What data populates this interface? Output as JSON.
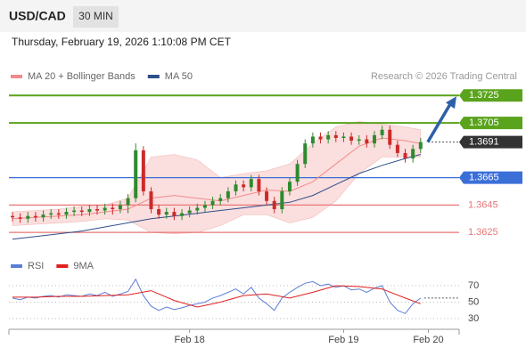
{
  "header": {
    "symbol": "USD/CAD",
    "timeframe": "30 MIN",
    "datetime": "Thursday, February 19, 2026 1:10:08 PM CET"
  },
  "chart_data": [
    {
      "type": "candlestick",
      "legend": [
        {
          "name": "MA 20 + Bollinger Bands",
          "color": "#f28b8b"
        },
        {
          "name": "MA 50",
          "color": "#2d4f8a"
        }
      ],
      "credit": "Research © 2026 Trading Central",
      "xlim": [
        0,
        58
      ],
      "xticks": [
        {
          "value": 23,
          "label": "Feb 18"
        },
        {
          "value": 43,
          "label": "Feb 19"
        },
        {
          "value": 54,
          "label": "Feb 20"
        }
      ],
      "ylim": [
        1.3616,
        1.3733
      ],
      "up_color": "#2e8b2e",
      "down_color": "#cc2a2a",
      "open": [
        1.3637,
        1.3636,
        1.3635,
        1.3637,
        1.3636,
        1.3638,
        1.3639,
        1.3638,
        1.364,
        1.3641,
        1.364,
        1.3642,
        1.3641,
        1.3643,
        1.3642,
        1.3645,
        1.365,
        1.3685,
        1.3655,
        1.3642,
        1.3638,
        1.364,
        1.3637,
        1.3639,
        1.3641,
        1.3643,
        1.3645,
        1.3648,
        1.365,
        1.3655,
        1.366,
        1.3658,
        1.3664,
        1.3655,
        1.3648,
        1.3642,
        1.3655,
        1.3662,
        1.3675,
        1.369,
        1.3695,
        1.3693,
        1.3696,
        1.3694,
        1.3695,
        1.3692,
        1.3693,
        1.369,
        1.3696,
        1.37,
        1.3689,
        1.3683,
        1.3679,
        1.3686
      ],
      "high": [
        1.364,
        1.3639,
        1.364,
        1.364,
        1.3641,
        1.3642,
        1.3642,
        1.3643,
        1.3644,
        1.3644,
        1.3645,
        1.3645,
        1.3646,
        1.3646,
        1.3648,
        1.3653,
        1.369,
        1.3688,
        1.3658,
        1.3645,
        1.3643,
        1.3643,
        1.3642,
        1.3644,
        1.3646,
        1.3648,
        1.3651,
        1.3653,
        1.3658,
        1.3663,
        1.3663,
        1.3667,
        1.3667,
        1.3658,
        1.3651,
        1.3658,
        1.3665,
        1.3678,
        1.3693,
        1.3698,
        1.3698,
        1.3699,
        1.3699,
        1.3698,
        1.3698,
        1.3696,
        1.3696,
        1.3699,
        1.3703,
        1.3703,
        1.3692,
        1.3686,
        1.3689,
        1.3694
      ],
      "low": [
        1.3633,
        1.3632,
        1.3632,
        1.3633,
        1.3633,
        1.3635,
        1.3635,
        1.3635,
        1.3637,
        1.3637,
        1.3637,
        1.3638,
        1.3638,
        1.3638,
        1.3639,
        1.3639,
        1.3647,
        1.3652,
        1.3639,
        1.3635,
        1.3635,
        1.3634,
        1.3634,
        1.3636,
        1.3638,
        1.364,
        1.3642,
        1.3645,
        1.3647,
        1.3652,
        1.3655,
        1.3655,
        1.3652,
        1.3645,
        1.3639,
        1.3639,
        1.3652,
        1.3659,
        1.3672,
        1.3687,
        1.369,
        1.369,
        1.3691,
        1.3691,
        1.3689,
        1.3689,
        1.3687,
        1.3687,
        1.3693,
        1.3686,
        1.368,
        1.3676,
        1.3676,
        1.3683
      ],
      "close": [
        1.3636,
        1.3635,
        1.3637,
        1.3636,
        1.3638,
        1.3639,
        1.3638,
        1.364,
        1.3641,
        1.364,
        1.3642,
        1.3641,
        1.3643,
        1.3642,
        1.3645,
        1.365,
        1.3685,
        1.3655,
        1.3642,
        1.3638,
        1.364,
        1.3637,
        1.3639,
        1.3641,
        1.3643,
        1.3645,
        1.3648,
        1.365,
        1.3655,
        1.366,
        1.3658,
        1.3664,
        1.3655,
        1.3648,
        1.3642,
        1.3655,
        1.3662,
        1.3675,
        1.369,
        1.3695,
        1.3693,
        1.3696,
        1.3694,
        1.3695,
        1.3692,
        1.3693,
        1.369,
        1.3696,
        1.37,
        1.3689,
        1.3683,
        1.3679,
        1.3686,
        1.3691
      ],
      "overlay_x": [
        0,
        3,
        6,
        9,
        12,
        15,
        18,
        21,
        24,
        27,
        30,
        33,
        36,
        39,
        42,
        45,
        48,
        51,
        53
      ],
      "bollinger": {
        "color": "#f9d3d3",
        "upper": [
          1.364,
          1.3641,
          1.3642,
          1.3644,
          1.3645,
          1.365,
          1.368,
          1.3682,
          1.3678,
          1.3665,
          1.3668,
          1.367,
          1.3675,
          1.369,
          1.3702,
          1.3706,
          1.3704,
          1.3702,
          1.37
        ],
        "lower": [
          1.363,
          1.3631,
          1.3632,
          1.3633,
          1.3635,
          1.3634,
          1.3625,
          1.3624,
          1.3625,
          1.363,
          1.3638,
          1.3638,
          1.3632,
          1.3636,
          1.3648,
          1.3668,
          1.368,
          1.368,
          1.368
        ]
      },
      "series": [
        {
          "name": "MA 20",
          "color": "#f28b8b",
          "values": [
            1.3635,
            1.3636,
            1.3637,
            1.3638,
            1.364,
            1.3642,
            1.365,
            1.3652,
            1.365,
            1.3648,
            1.3652,
            1.3656,
            1.3655,
            1.3662,
            1.3675,
            1.3688,
            1.3694,
            1.3692,
            1.369
          ]
        },
        {
          "name": "MA 50",
          "color": "#2d4f8a",
          "values": [
            1.362,
            1.3622,
            1.3624,
            1.3626,
            1.3629,
            1.3632,
            1.3635,
            1.3637,
            1.3639,
            1.3641,
            1.3643,
            1.3645,
            1.3647,
            1.3652,
            1.366,
            1.3668,
            1.3674,
            1.3679,
            1.3682
          ]
        }
      ],
      "levels": [
        {
          "value": 1.3725,
          "color": "#5aa31c",
          "style": "box"
        },
        {
          "value": 1.3705,
          "color": "#5aa31c",
          "style": "box"
        },
        {
          "value": 1.3691,
          "color": "#333333",
          "style": "current"
        },
        {
          "value": 1.3665,
          "color": "#3b6fd8",
          "style": "box"
        },
        {
          "value": 1.3645,
          "color": "#e87575",
          "style": "text"
        },
        {
          "value": 1.3625,
          "color": "#e87575",
          "style": "text"
        }
      ]
    },
    {
      "type": "line",
      "legend": [
        {
          "name": "RSI",
          "color": "#5b7fd6"
        },
        {
          "name": "9MA",
          "color": "#e02020"
        }
      ],
      "xlim": [
        0,
        58
      ],
      "ylim": [
        19,
        82
      ],
      "yticks": [
        30,
        50,
        70
      ],
      "grid": true,
      "series": [
        {
          "name": "RSI",
          "color": "#5b7fd6",
          "values": [
            55,
            53,
            56,
            55,
            57,
            58,
            56,
            59,
            58,
            57,
            60,
            58,
            62,
            57,
            60,
            63,
            78,
            58,
            45,
            40,
            44,
            41,
            43,
            46,
            48,
            50,
            55,
            58,
            62,
            66,
            60,
            68,
            55,
            48,
            40,
            55,
            62,
            68,
            73,
            75,
            70,
            72,
            68,
            70,
            65,
            66,
            62,
            67,
            70,
            50,
            40,
            36,
            48,
            55
          ]
        },
        {
          "name": "9MA",
          "color": "#e02020",
          "x": [
            0,
            3,
            6,
            9,
            12,
            15,
            18,
            21,
            24,
            27,
            30,
            33,
            36,
            39,
            42,
            45,
            48,
            51,
            53
          ],
          "values": [
            56,
            56,
            57,
            57,
            58,
            59,
            64,
            52,
            44,
            50,
            58,
            60,
            55,
            62,
            70,
            69,
            66,
            55,
            48
          ]
        }
      ]
    }
  ]
}
